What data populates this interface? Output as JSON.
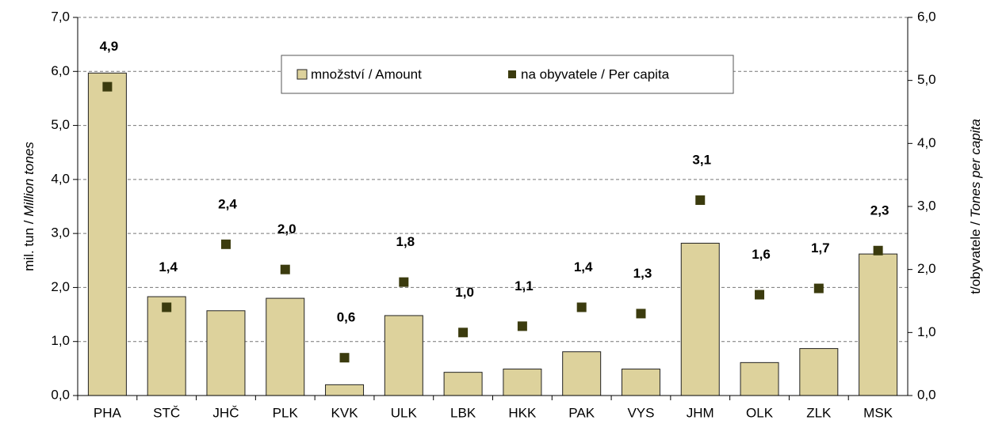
{
  "chart_data": {
    "type": "bar_scatter",
    "categories": [
      "PHA",
      "STČ",
      "JHČ",
      "PLK",
      "KVK",
      "ULK",
      "LBK",
      "HKK",
      "PAK",
      "VYS",
      "JHM",
      "OLK",
      "ZLK",
      "MSK"
    ],
    "series": [
      {
        "name": "množství / Amount",
        "type": "bar",
        "color": "#ddd29c",
        "axis": "y",
        "values": [
          5.97,
          1.83,
          1.57,
          1.8,
          0.2,
          1.48,
          0.43,
          0.49,
          0.81,
          0.49,
          2.82,
          0.61,
          0.87,
          2.62
        ]
      },
      {
        "name": "na obyvatele / Per capita",
        "type": "scatter",
        "color": "#3b3b0e",
        "axis": "y2",
        "values": [
          4.9,
          1.4,
          2.4,
          2.0,
          0.6,
          1.8,
          1.0,
          1.1,
          1.4,
          1.3,
          3.1,
          1.6,
          1.7,
          2.3
        ],
        "value_labels": [
          "4,9",
          "1,4",
          "2,4",
          "2,0",
          "0,6",
          "1,8",
          "1,0",
          "1,1",
          "1,4",
          "1,3",
          "3,1",
          "1,6",
          "1,7",
          "2,3"
        ]
      }
    ],
    "ylabel": {
      "text": "mil.  tun / ",
      "italic": "Million tones"
    },
    "y2label": {
      "text": "t/obyvatele / ",
      "italic": "Tones per capita"
    },
    "ylim": [
      0,
      7
    ],
    "yticks": [
      {
        "value": 0,
        "label": "0,0"
      },
      {
        "value": 1,
        "label": "1,0"
      },
      {
        "value": 2,
        "label": "2,0"
      },
      {
        "value": 3,
        "label": "3,0"
      },
      {
        "value": 4,
        "label": "4,0"
      },
      {
        "value": 5,
        "label": "5,0"
      },
      {
        "value": 6,
        "label": "6,0"
      },
      {
        "value": 7,
        "label": "7,0"
      }
    ],
    "y2lim": [
      0,
      6
    ],
    "y2ticks": [
      {
        "value": 0,
        "label": "0,0"
      },
      {
        "value": 1,
        "label": "1,0"
      },
      {
        "value": 2,
        "label": "2,0"
      },
      {
        "value": 3,
        "label": "3,0"
      },
      {
        "value": 4,
        "label": "4,0"
      },
      {
        "value": 5,
        "label": "5,0"
      },
      {
        "value": 6,
        "label": "6,0"
      }
    ],
    "grid": true,
    "legend": "top"
  }
}
